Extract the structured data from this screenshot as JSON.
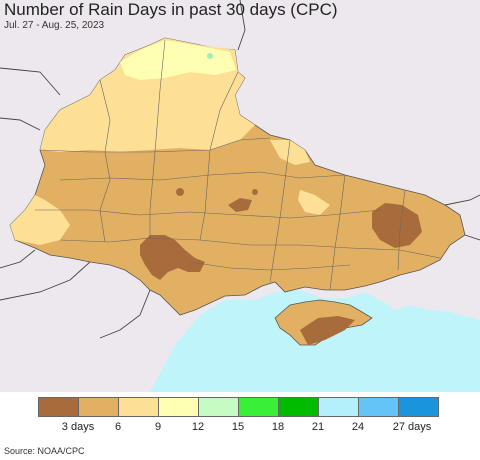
{
  "header": {
    "title": "Number of Rain Days in past 30 days (CPC)",
    "subtitle": "Jul. 27 - Aug. 25, 2023"
  },
  "legend": {
    "colors": [
      "#a86c3c",
      "#e2b063",
      "#fddf96",
      "#ffffb4",
      "#c4fcc4",
      "#38f038",
      "#00bb00",
      "#b4f0fc",
      "#64c4f8",
      "#1895dc"
    ],
    "labels": [
      "3 days",
      "6",
      "9",
      "12",
      "15",
      "18",
      "21",
      "24",
      "27 days"
    ]
  },
  "map": {
    "colors": {
      "outside": "#ede8ee",
      "sea": "#bff4fb",
      "land_base": "#e2b063",
      "light": "#fddf96",
      "lightest": "#ffffb4",
      "dark": "#a86c3c",
      "green_spot": "#9ef0b8"
    }
  },
  "footer": {
    "source": "Source: NOAA/CPC"
  }
}
